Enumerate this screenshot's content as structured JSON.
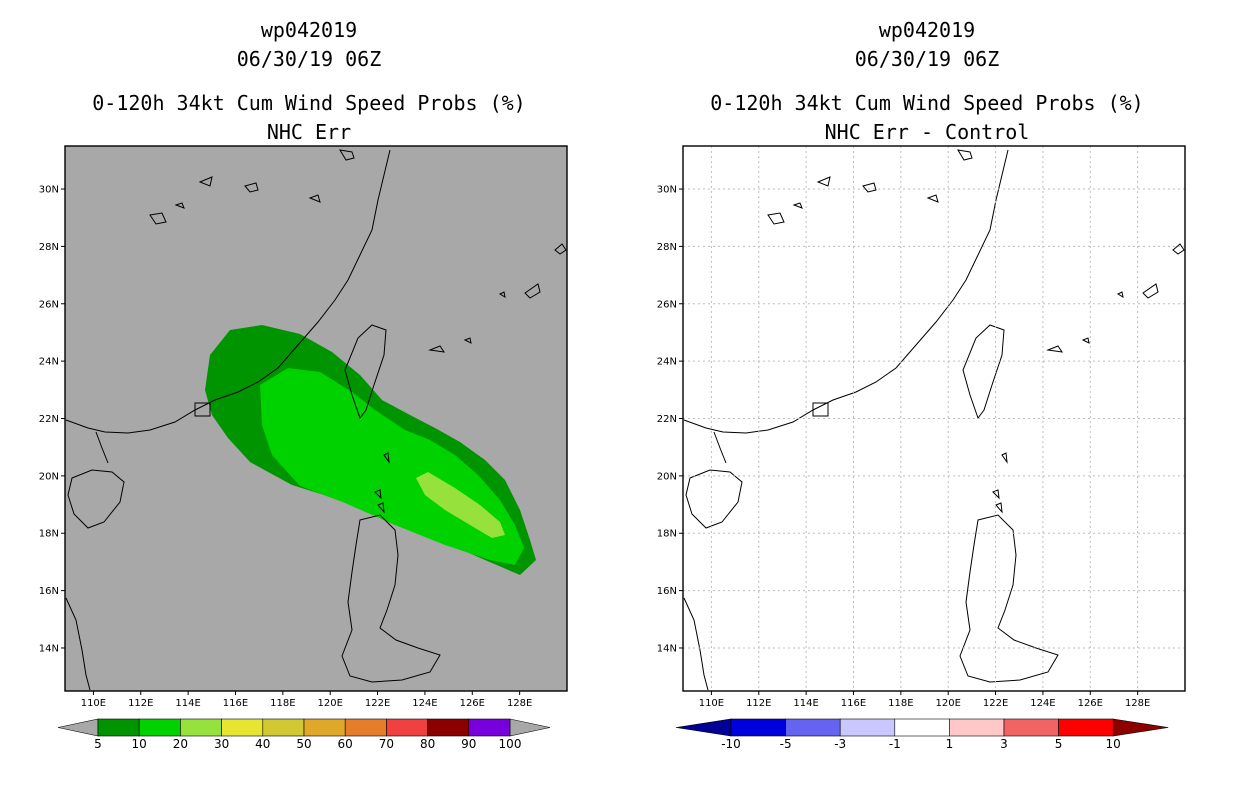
{
  "panels": [
    {
      "storm_id": "wp042019",
      "datetime": "06/30/19 06Z",
      "product": "0-120h 34kt Cum Wind Speed Probs (%)",
      "subtitle": "NHC Err",
      "background_color": "#a8a8a8",
      "colorbar": {
        "labels": [
          "5",
          "10",
          "20",
          "30",
          "40",
          "50",
          "60",
          "70",
          "80",
          "90",
          "100"
        ],
        "colors": [
          "#009400",
          "#00d200",
          "#96e13c",
          "#e6e632",
          "#d2c832",
          "#e0a828",
          "#e67d28",
          "#f04040",
          "#8c0000",
          "#7800dc"
        ],
        "end_color": "#a8a8a8"
      },
      "probability_zones": [
        {
          "level": "5-10%",
          "color": "#009400"
        },
        {
          "level": "10-20%",
          "color": "#00d200"
        },
        {
          "level": "20-30%",
          "color": "#96e13c"
        }
      ]
    },
    {
      "storm_id": "wp042019",
      "datetime": "06/30/19 06Z",
      "product": "0-120h 34kt Cum Wind Speed Probs (%)",
      "subtitle": "NHC Err - Control",
      "background_color": "#ffffff",
      "colorbar": {
        "labels": [
          "-10",
          "-5",
          "-3",
          "-1",
          "1",
          "3",
          "5",
          "10"
        ],
        "colors": [
          "#0000dc",
          "#6464f0",
          "#c8c8ff",
          "#ffffff",
          "#ffc8c8",
          "#f06464",
          "#ff0000"
        ],
        "end_left_color": "#000096",
        "end_right_color": "#8c0000"
      }
    }
  ],
  "axes": {
    "lat_labels": [
      "30N",
      "28N",
      "26N",
      "24N",
      "22N",
      "20N",
      "18N",
      "16N",
      "14N"
    ],
    "lon_labels": [
      "110E",
      "112E",
      "114E",
      "116E",
      "118E",
      "120E",
      "122E",
      "124E",
      "126E",
      "128E"
    ],
    "lat_range": [
      12.5,
      31.5
    ],
    "lon_range": [
      108.8,
      130.0
    ]
  }
}
